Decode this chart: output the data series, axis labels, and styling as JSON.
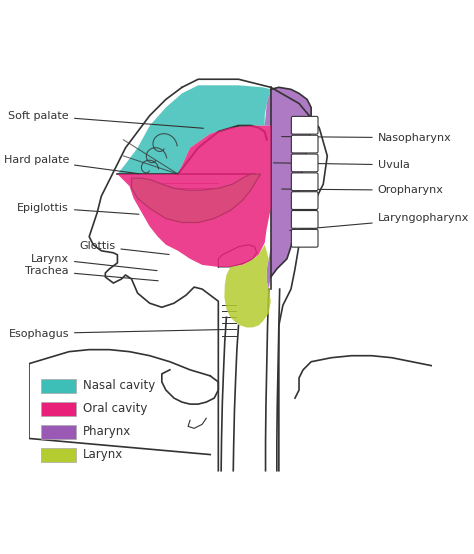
{
  "title": "",
  "bg_color": "#ffffff",
  "nasal_cavity_color": "#3dbfb8",
  "oral_cavity_color": "#e8207a",
  "pharynx_color": "#9b59b6",
  "larynx_color": "#b5cc30",
  "line_color": "#333333",
  "label_color": "#333333",
  "legend_items": [
    {
      "label": "Nasal cavity",
      "color": "#3dbfb8"
    },
    {
      "label": "Oral cavity",
      "color": "#e8207a"
    },
    {
      "label": "Pharynx",
      "color": "#9b59b6"
    },
    {
      "label": "Larynx",
      "color": "#b5cc30"
    }
  ],
  "figsize": [
    4.74,
    5.54
  ],
  "dpi": 100
}
